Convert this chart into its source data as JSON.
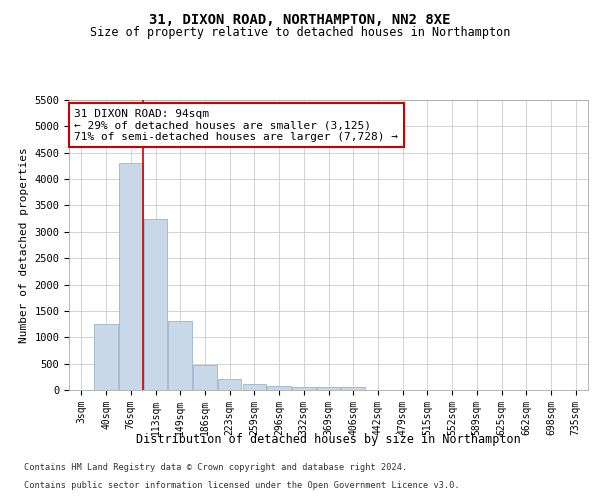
{
  "title": "31, DIXON ROAD, NORTHAMPTON, NN2 8XE",
  "subtitle": "Size of property relative to detached houses in Northampton",
  "xlabel": "Distribution of detached houses by size in Northampton",
  "ylabel": "Number of detached properties",
  "footer1": "Contains HM Land Registry data © Crown copyright and database right 2024.",
  "footer2": "Contains public sector information licensed under the Open Government Licence v3.0.",
  "bin_labels": [
    "3sqm",
    "40sqm",
    "76sqm",
    "113sqm",
    "149sqm",
    "186sqm",
    "223sqm",
    "259sqm",
    "296sqm",
    "332sqm",
    "369sqm",
    "406sqm",
    "442sqm",
    "479sqm",
    "515sqm",
    "552sqm",
    "589sqm",
    "625sqm",
    "662sqm",
    "698sqm",
    "735sqm"
  ],
  "bar_values": [
    0,
    1250,
    4300,
    3250,
    1300,
    480,
    200,
    110,
    75,
    55,
    50,
    50,
    0,
    0,
    0,
    0,
    0,
    0,
    0,
    0,
    0
  ],
  "bar_color": "#c8d8e8",
  "bar_edge_color": "#9ab5cb",
  "red_line_x": 2.48,
  "annotation_line1": "31 DIXON ROAD: 94sqm",
  "annotation_line2": "← 29% of detached houses are smaller (3,125)",
  "annotation_line3": "71% of semi-detached houses are larger (7,728) →",
  "ylim": [
    0,
    5500
  ],
  "yticks": [
    0,
    500,
    1000,
    1500,
    2000,
    2500,
    3000,
    3500,
    4000,
    4500,
    5000,
    5500
  ],
  "background_color": "#ffffff",
  "grid_color": "#cccccc"
}
